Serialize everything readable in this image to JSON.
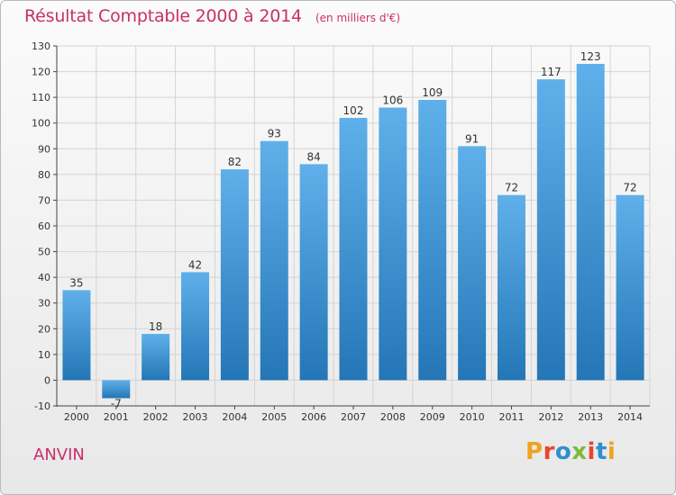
{
  "header": {
    "title": "Résultat Comptable 2000 à 2014",
    "subtitle": "(en milliers d'€)"
  },
  "footer": {
    "commune": "ANVIN",
    "logo_text": "Proxiti",
    "logo_colors": [
      "#f0a21f",
      "#e8452e",
      "#2f8fce",
      "#7bbb3c",
      "#e8452e",
      "#2f8fce",
      "#f0a21f"
    ]
  },
  "colors": {
    "title": "#c8306a",
    "bar_top": "#5fb0ea",
    "bar_bottom": "#2476b6",
    "grid": "#d4d4d4",
    "axis": "#444444"
  },
  "chart_data": {
    "type": "bar",
    "title": "Résultat Comptable 2000 à 2014",
    "subtitle": "(en milliers d'€)",
    "categories": [
      "2000",
      "2001",
      "2002",
      "2003",
      "2004",
      "2005",
      "2006",
      "2007",
      "2008",
      "2009",
      "2010",
      "2011",
      "2012",
      "2013",
      "2014"
    ],
    "values": [
      35,
      -7,
      18,
      42,
      82,
      93,
      84,
      102,
      106,
      109,
      91,
      72,
      117,
      123,
      72
    ],
    "labels": [
      "35",
      "-7",
      "18",
      "42",
      "82",
      "93",
      "84",
      "102",
      "106",
      "109",
      "91",
      "72",
      "117",
      "123",
      "72"
    ],
    "ylim": [
      -10,
      130
    ],
    "yticks": [
      -10,
      0,
      10,
      20,
      30,
      40,
      50,
      60,
      70,
      80,
      90,
      100,
      110,
      120,
      130
    ],
    "grid": true,
    "legend": "none"
  }
}
